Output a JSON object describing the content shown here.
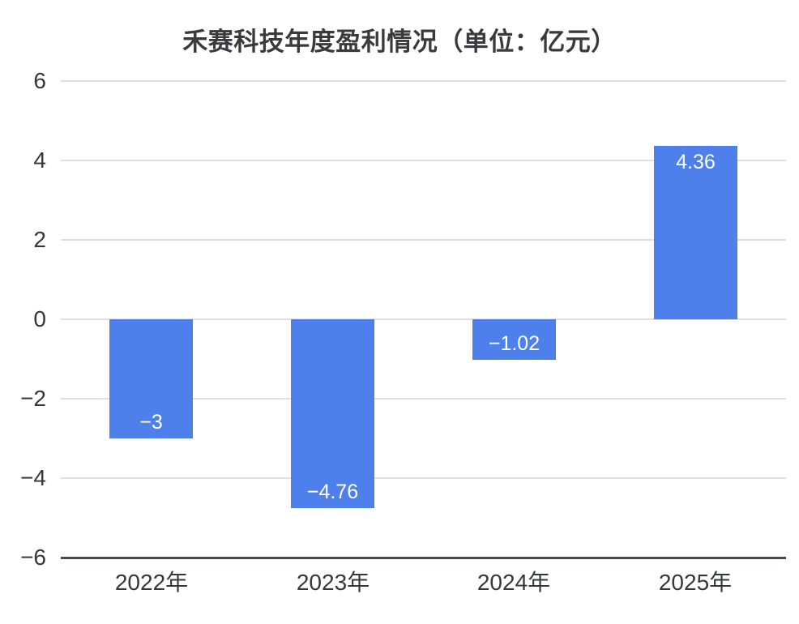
{
  "chart_data": {
    "type": "bar",
    "title": "禾赛科技年度盈利情况（单位：亿元）",
    "categories": [
      "2022年",
      "2023年",
      "2024年",
      "2025年"
    ],
    "values": [
      -3,
      -4.76,
      -1.02,
      4.36
    ],
    "value_labels": [
      "−3",
      "−4.76",
      "−1.02",
      "4.36"
    ],
    "xlabel": "",
    "ylabel": "",
    "ylim": [
      -6,
      6
    ],
    "y_ticks": [
      6,
      4,
      2,
      0,
      -2,
      -4,
      -6
    ],
    "y_tick_labels": [
      "6",
      "4",
      "2",
      "0",
      "−2",
      "−4",
      "−6"
    ],
    "grid": true,
    "legend": false,
    "colors": {
      "bar": "#4e80ec",
      "grid": "#e0e0e0",
      "axis": "#464a53",
      "title": "#3a3a3e",
      "tick": "#36373b",
      "value_label": "#ffffff",
      "background": "#ffffff"
    }
  }
}
